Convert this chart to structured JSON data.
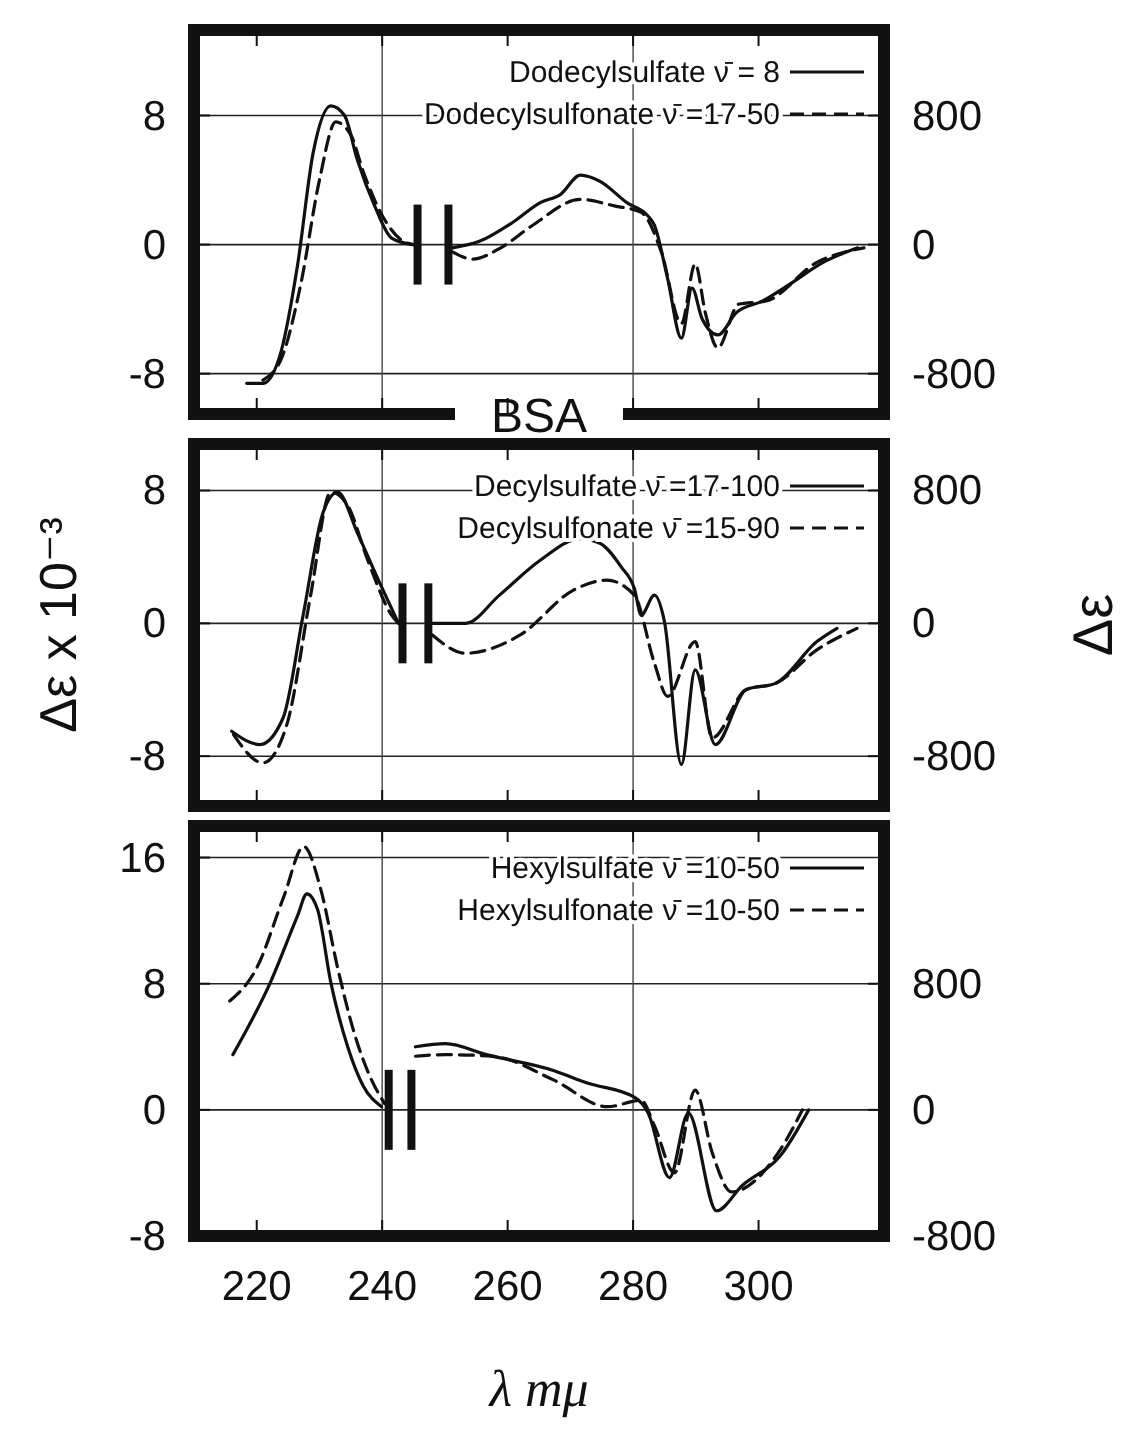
{
  "chart_data": [
    {
      "type": "line",
      "xlim": [
        210,
        320
      ],
      "xticks": [
        220,
        240,
        260,
        280,
        300
      ],
      "ylim": [
        -10.5,
        13.3
      ],
      "yticks": [
        -8,
        0,
        8
      ],
      "y2lim": [
        -1050,
        1330
      ],
      "y2ticks": [
        -800,
        0,
        800
      ],
      "tick_labels": "y",
      "grid": "y",
      "legend": "top right",
      "annotations": [
        "BSA"
      ],
      "ref_lines": [
        {
          "axis": "x",
          "value": 240
        },
        {
          "axis": "x",
          "value": 280
        }
      ],
      "series": [
        {
          "name": "Dodecylsulfate ν̄ = 8",
          "color": "#111111",
          "line_style": "solid",
          "x": [
            218.4,
            221,
            223.9,
            226.5,
            229,
            231.8,
            234,
            236,
            238.8,
            241.5,
            244.8
          ],
          "values": [
            -8.6,
            -8.6,
            -6.6,
            -1.3,
            5.7,
            8.6,
            8.0,
            5.3,
            2.4,
            0.4,
            0
          ]
        },
        {
          "name": "Dodecylsulfonate ν̄ =17-50",
          "color": "#111111",
          "line_style": "dashed",
          "x": [
            221,
            224,
            227,
            230,
            232.6,
            235,
            237,
            240,
            243,
            245
          ],
          "values": [
            -8.4,
            -7.0,
            -2.5,
            4.0,
            7.6,
            6.8,
            4.5,
            1.8,
            0.3,
            0
          ]
        },
        {
          "color": "#111111",
          "line_style": "solid",
          "axis": "y2",
          "x": [
            251.2,
            255.5,
            260.9,
            265.2,
            268.4,
            271.6,
            274.8,
            279,
            282.3,
            283.4,
            285.5,
            287.7,
            289.4,
            291,
            293.5,
            296.5,
            300.6,
            304.8,
            310.3,
            315.8
          ],
          "values": [
            -20,
            20,
            140,
            260,
            310,
            430,
            390,
            260,
            180,
            120,
            -210,
            -580,
            -270,
            -460,
            -560,
            -420,
            -350,
            -250,
            -110,
            -20
          ]
        },
        {
          "color": "#111111",
          "line_style": "dashed",
          "axis": "y2",
          "x": [
            251.2,
            254.4,
            258.7,
            264,
            271.6,
            277,
            281.3,
            284.5,
            287.7,
            289.9,
            291.5,
            293.5,
            296.8,
            301.2,
            309.3,
            316.8
          ],
          "values": [
            -45,
            -90,
            -25,
            120,
            280,
            240,
            200,
            -45,
            -490,
            -120,
            -420,
            -640,
            -370,
            -350,
            -110,
            -20
          ]
        }
      ]
    },
    {
      "type": "line",
      "xlim": [
        210,
        320
      ],
      "xticks": [
        220,
        240,
        260,
        280,
        300
      ],
      "ylim": [
        -11,
        10.8
      ],
      "yticks": [
        -8,
        0,
        8
      ],
      "y2lim": [
        -1100,
        1080
      ],
      "y2ticks": [
        -800,
        0,
        800
      ],
      "tick_labels": "y",
      "grid": "y",
      "legend": "top right",
      "ylabel": "Δε x 10⁻³",
      "y2label": "Δε",
      "ref_lines": [
        {
          "axis": "x",
          "value": 240
        },
        {
          "axis": "x",
          "value": 280
        }
      ],
      "series": [
        {
          "name": "Decylsulfate ν̄ =17-100",
          "color": "#111111",
          "line_style": "solid",
          "x": [
            216,
            220.5,
            224.2,
            227.4,
            230.6,
            232.9,
            236.1,
            239.4,
            242.6
          ],
          "values": [
            -6.5,
            -7.3,
            -5.7,
            0.5,
            6.7,
            7.9,
            5.4,
            2.6,
            0
          ]
        },
        {
          "name": "Decylsulfonate ν̄ =15-90",
          "color": "#111111",
          "line_style": "dashed",
          "x": [
            216.3,
            221,
            224.8,
            228.6,
            231.8,
            234.5,
            237.7,
            241.5,
            242.6
          ],
          "values": [
            -6.7,
            -8.4,
            -6.1,
            1.7,
            7.9,
            7.1,
            3.8,
            0.5,
            0
          ]
        },
        {
          "color": "#111111",
          "line_style": "solid",
          "axis": "y2",
          "x": [
            248,
            253.3,
            258.7,
            265.2,
            271.6,
            274.8,
            278.1,
            280.2,
            281.3,
            283.4,
            285,
            287.7,
            289.9,
            293.1,
            298,
            302.8,
            309.3,
            312.5
          ],
          "values": [
            0,
            0,
            170,
            380,
            510,
            480,
            340,
            210,
            50,
            170,
            10,
            -850,
            -280,
            -730,
            -400,
            -360,
            -110,
            -30
          ]
        },
        {
          "color": "#111111",
          "line_style": "dashed",
          "axis": "y2",
          "x": [
            248,
            253.3,
            262,
            270.5,
            275.8,
            280.2,
            283.4,
            285.5,
            289.9,
            292.6,
            298,
            302.8,
            309.3,
            315.7
          ],
          "values": [
            -70,
            -180,
            -70,
            200,
            260,
            170,
            -240,
            -440,
            -110,
            -690,
            -400,
            -360,
            -160,
            -30
          ]
        }
      ]
    },
    {
      "type": "line",
      "xlim": [
        210,
        320
      ],
      "xticks": [
        220,
        240,
        260,
        280,
        300
      ],
      "ylim": [
        -8,
        18
      ],
      "yticks": [
        -8,
        0,
        8,
        16
      ],
      "y2lim": [
        -800,
        1800
      ],
      "y2ticks": [
        -800,
        0,
        800
      ],
      "grid": "y",
      "legend": "top right",
      "xlabel": "λ mμ",
      "ref_lines": [
        {
          "axis": "x",
          "value": 240
        },
        {
          "axis": "x",
          "value": 280
        }
      ],
      "series": [
        {
          "name": "Hexylsulfate ν̄ =10-50",
          "color": "#111111",
          "line_style": "solid",
          "x": [
            216.2,
            222.2,
            226.5,
            228,
            229.7,
            231.8,
            234.5,
            237,
            239.9
          ],
          "values": [
            3.5,
            8.1,
            12.3,
            13.7,
            12.7,
            8.1,
            4.0,
            1.5,
            0.2
          ]
        },
        {
          "name": "Hexylsulfonate ν̄ =10-50",
          "color": "#111111",
          "line_style": "dashed",
          "x": [
            215.7,
            220,
            224.3,
            227.5,
            230.2,
            232.9,
            235.6,
            238.3,
            240.4
          ],
          "values": [
            6.9,
            9.0,
            13.5,
            16.7,
            14.0,
            9.0,
            4.8,
            1.9,
            0.4
          ]
        },
        {
          "color": "#111111",
          "line_style": "solid",
          "axis": "y2",
          "x": [
            245.3,
            250.1,
            256.6,
            267.3,
            272.7,
            280.2,
            282.4,
            285.8,
            288.8,
            293.3,
            297.4,
            303.5,
            308
          ],
          "values": [
            400,
            420,
            350,
            250,
            170,
            80,
            -20,
            -430,
            -20,
            -640,
            -480,
            -290,
            0
          ]
        },
        {
          "color": "#111111",
          "line_style": "dashed",
          "axis": "y2",
          "x": [
            245.3,
            250.1,
            257.6,
            267.3,
            275.9,
            281.3,
            283.4,
            286.6,
            289.9,
            292.6,
            295.7,
            303.5,
            307
          ],
          "values": [
            340,
            350,
            340,
            190,
            20,
            60,
            -100,
            -400,
            125,
            -270,
            -520,
            -250,
            0
          ]
        }
      ]
    }
  ]
}
